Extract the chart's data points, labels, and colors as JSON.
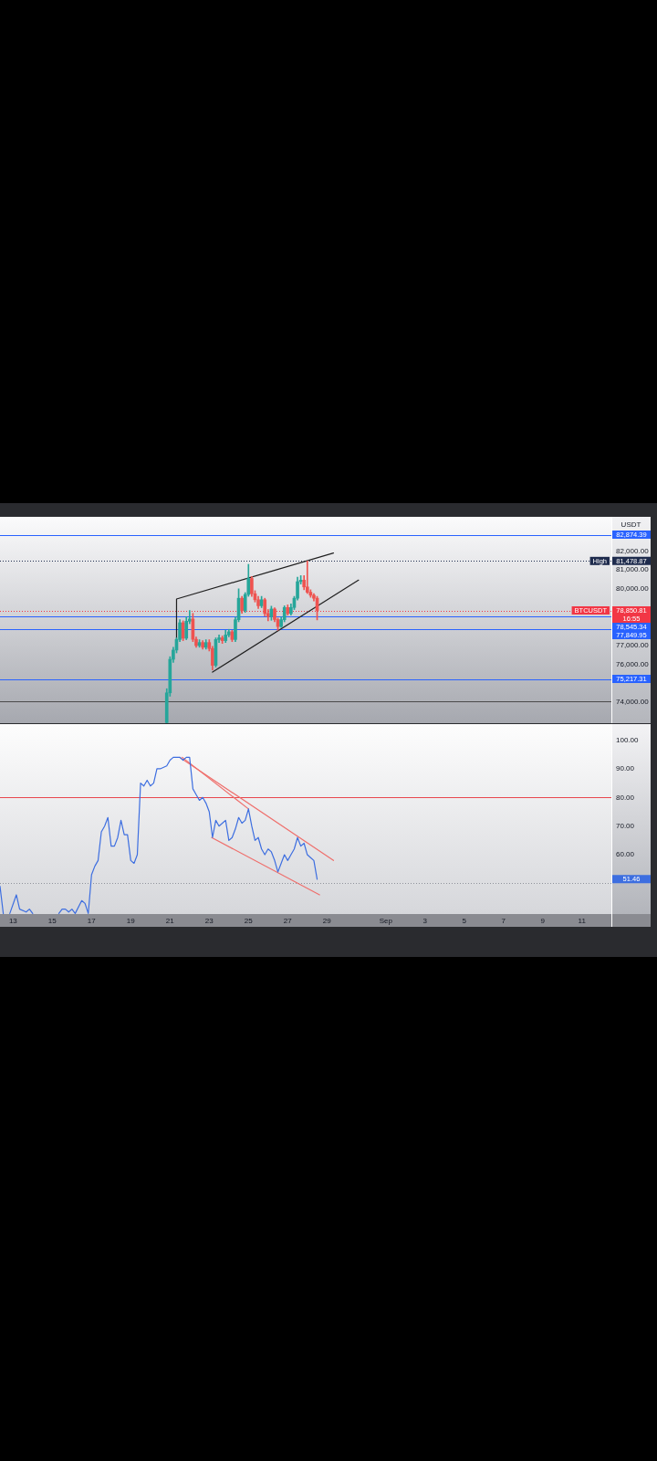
{
  "chart_data": [
    {
      "type": "candlestick",
      "ylabel": "USDT",
      "x": [
        "--08-20T20:00",
        "--08-21T00:00",
        "--08-21T04:00",
        "--08-21T08:00",
        "--08-21T12:00",
        "--08-21T16:00",
        "--08-21T20:00",
        "--08-22T00:00",
        "--08-22T04:00",
        "--08-22T08:00",
        "--08-22T12:00",
        "--08-22T16:00",
        "--08-22T20:00",
        "--08-23T00:00",
        "--08-23T04:00",
        "--08-23T08:00",
        "--08-23T12:00",
        "--08-23T16:00",
        "--08-23T20:00",
        "--08-24T00:00",
        "--08-24T04:00",
        "--08-24T08:00",
        "--08-24T12:00",
        "--08-24T16:00",
        "--08-24T20:00",
        "--08-25T00:00",
        "--08-25T04:00",
        "--08-25T08:00",
        "--08-25T12:00",
        "--08-25T16:00",
        "--08-25T20:00",
        "--08-26T00:00",
        "--08-26T04:00",
        "--08-26T08:00",
        "--08-26T12:00",
        "--08-26T16:00",
        "--08-26T20:00",
        "--08-27T00:00",
        "--08-27T04:00",
        "--08-27T08:00",
        "--08-27T12:00",
        "--08-27T16:00",
        "--08-27T20:00",
        "--08-28T00:00",
        "--08-28T04:00",
        "--08-28T08:00",
        "--08-28T12:00"
      ],
      "ohlc": [
        [
          72900,
          74700,
          72880,
          74480
        ],
        [
          74480,
          76400,
          74300,
          76260
        ],
        [
          76260,
          76900,
          76100,
          76750
        ],
        [
          76750,
          77400,
          76600,
          77310
        ],
        [
          77310,
          78360,
          77200,
          78200
        ],
        [
          78200,
          78300,
          77250,
          77380
        ],
        [
          77380,
          78520,
          77300,
          78280
        ],
        [
          78280,
          78850,
          78150,
          78400
        ],
        [
          78400,
          78700,
          77200,
          77320
        ],
        [
          77320,
          77450,
          76900,
          76990
        ],
        [
          76990,
          77300,
          76900,
          77150
        ],
        [
          77150,
          77250,
          76800,
          76900
        ],
        [
          76900,
          77300,
          76800,
          77150
        ],
        [
          77150,
          77300,
          76700,
          76830
        ],
        [
          76830,
          76950,
          75700,
          75940
        ],
        [
          75940,
          77400,
          75850,
          77310
        ],
        [
          77310,
          77550,
          77150,
          77400
        ],
        [
          77400,
          77500,
          77100,
          77250
        ],
        [
          77250,
          77800,
          77150,
          77550
        ],
        [
          77550,
          77850,
          77450,
          77720
        ],
        [
          77720,
          77800,
          77200,
          77310
        ],
        [
          77310,
          78500,
          77200,
          78360
        ],
        [
          78360,
          80000,
          78250,
          79500
        ],
        [
          79500,
          79600,
          78700,
          78850
        ],
        [
          78850,
          79800,
          78750,
          79700
        ],
        [
          79700,
          81300,
          79600,
          80550
        ],
        [
          80550,
          80650,
          79600,
          79740
        ],
        [
          79740,
          79900,
          79300,
          79420
        ],
        [
          79420,
          79600,
          78950,
          79100
        ],
        [
          79100,
          79600,
          79000,
          79420
        ],
        [
          79420,
          79500,
          78550,
          78690
        ],
        [
          78690,
          78900,
          78300,
          78530
        ],
        [
          78530,
          79080,
          78330,
          78930
        ],
        [
          78930,
          79000,
          78250,
          78370
        ],
        [
          78370,
          78450,
          77800,
          78000
        ],
        [
          78000,
          78500,
          77950,
          78360
        ],
        [
          78360,
          79100,
          78250,
          79010
        ],
        [
          79010,
          79150,
          78600,
          78690
        ],
        [
          78690,
          79200,
          78600,
          79010
        ],
        [
          79010,
          79600,
          78900,
          79500
        ],
        [
          79500,
          80620,
          79400,
          80380
        ],
        [
          80380,
          80700,
          80250,
          80460
        ],
        [
          80460,
          80700,
          79950,
          80100
        ],
        [
          80100,
          81478.87,
          79750,
          79820
        ],
        [
          79820,
          79950,
          79550,
          79660
        ],
        [
          79660,
          79750,
          79350,
          79500
        ],
        [
          79500,
          79600,
          78350,
          78850.81
        ]
      ],
      "colors": [
        "#26a69a",
        "#26a69a",
        "#26a69a",
        "#26a69a",
        "#26a69a",
        "#ef5350",
        "#26a69a",
        "#26a69a",
        "#ef5350",
        "#ef5350",
        "#26a69a",
        "#ef5350",
        "#26a69a",
        "#ef5350",
        "#ef5350",
        "#26a69a",
        "#26a69a",
        "#ef5350",
        "#26a69a",
        "#26a69a",
        "#ef5350",
        "#26a69a",
        "#26a69a",
        "#ef5350",
        "#26a69a",
        "#26a69a",
        "#ef5350",
        "#ef5350",
        "#ef5350",
        "#26a69a",
        "#ef5350",
        "#ef5350",
        "#26a69a",
        "#ef5350",
        "#ef5350",
        "#26a69a",
        "#26a69a",
        "#ef5350",
        "#26a69a",
        "#26a69a",
        "#26a69a",
        "#26a69a",
        "#ef5350",
        "#ef5350",
        "#ef5350",
        "#ef5350",
        "#ef5350"
      ],
      "series": [
        {
          "type": "line",
          "color": "#1f1f1f",
          "x": [
            "--08-21T08:00",
            "--08-21T08:00",
            "--08-29T08:00"
          ],
          "values": [
            77000,
            79460,
            81900
          ]
        },
        {
          "type": "line",
          "color": "#1f1f1f",
          "x": [
            "--08-23T04:00",
            "--08-30T14:40"
          ],
          "values": [
            75580,
            80460
          ]
        }
      ],
      "xlim": [
        "--08-12T08:00",
        "--09-12T12:00"
      ],
      "ylim": [
        72870,
        83820
      ],
      "yticks": [
        {
          "value": 74000,
          "label": "74,000.00"
        },
        {
          "value": 76000,
          "label": "76,000.00"
        },
        {
          "value": 77000,
          "label": "77,000.00"
        },
        {
          "value": 80000,
          "label": "80,000.00"
        },
        {
          "value": 81000,
          "label": "81,000.00"
        },
        {
          "value": 82000,
          "label": "82,000.00"
        }
      ],
      "tick_labels": "y",
      "ref_lines": [
        {
          "axis": "y",
          "value": 82874.39,
          "label": "82,874.39",
          "color": "#2962ff"
        },
        {
          "axis": "y",
          "value": 81478.87,
          "label": "81,478.87",
          "color": "#1e2b4d",
          "line_style": "dotted"
        },
        {
          "axis": "y",
          "value": 78850.81,
          "label": "78,850.81",
          "color": "#f23645",
          "line_style": "dotted"
        },
        {
          "axis": "y",
          "value": 78545.34,
          "label": "78,545.34",
          "color": "#2962ff"
        },
        {
          "axis": "y",
          "value": 77849.95,
          "label": "77,849.95",
          "color": "#2962ff"
        },
        {
          "axis": "y",
          "value": 75217.31,
          "label": "75,217.31",
          "color": "#2962ff"
        },
        {
          "axis": "y",
          "value": 74050,
          "color": "#4a4a4a"
        }
      ],
      "annotations": [
        {
          "text": "High",
          "x": "--09-12T12:00",
          "y": 81478.87
        },
        {
          "text": "BTCUSDT",
          "x": "--09-12T12:00",
          "y": 78850.81
        },
        "16:55"
      ]
    },
    {
      "type": "line",
      "series": [
        {
          "color": "#3d6ee0",
          "x": [
            "--08-12T08:00",
            "--08-12T12:00",
            "--08-12T16:00",
            "--08-12T20:00",
            "--08-13T04:00",
            "--08-13T08:00",
            "--08-13T16:00",
            "--08-13T20:00",
            "--08-14T00:00",
            "--08-14T04:00",
            "--08-15T08:00",
            "--08-15T12:00",
            "--08-15T16:00",
            "--08-15T20:00",
            "--08-16T00:00",
            "--08-16T04:00",
            "--08-16T12:00",
            "--08-16T16:00",
            "--08-16T20:00",
            "--08-17T00:00",
            "--08-17T04:00",
            "--08-17T08:00",
            "--08-17T12:00",
            "--08-17T16:00",
            "--08-17T20:00",
            "--08-18T00:00",
            "--08-18T04:00",
            "--08-18T08:00",
            "--08-18T12:00",
            "--08-18T16:00",
            "--08-18T20:00",
            "--08-19T00:00",
            "--08-19T04:00",
            "--08-19T08:00",
            "--08-19T12:00",
            "--08-19T16:00",
            "--08-19T20:00",
            "--08-20T00:00",
            "--08-20T04:00",
            "--08-20T08:00",
            "--08-20T12:00",
            "--08-20T20:00",
            "--08-21T00:00",
            "--08-21T04:00",
            "--08-21T12:00",
            "--08-21T16:00",
            "--08-21T20:00",
            "--08-22T00:00",
            "--08-22T04:00",
            "--08-22T08:00",
            "--08-22T12:00",
            "--08-22T16:00",
            "--08-22T20:00",
            "--08-23T00:00",
            "--08-23T04:00",
            "--08-23T08:00",
            "--08-23T12:00",
            "--08-23T16:00",
            "--08-23T20:00",
            "--08-24T00:00",
            "--08-24T04:00",
            "--08-24T08:00",
            "--08-24T12:00",
            "--08-24T16:00",
            "--08-24T20:00",
            "--08-25T00:00",
            "--08-25T04:00",
            "--08-25T08:00",
            "--08-25T12:00",
            "--08-25T16:00",
            "--08-25T20:00",
            "--08-26T00:00",
            "--08-26T04:00",
            "--08-26T08:00",
            "--08-26T12:00",
            "--08-26T16:00",
            "--08-26T20:00",
            "--08-27T00:00",
            "--08-27T04:00",
            "--08-27T08:00",
            "--08-27T12:00",
            "--08-27T16:00",
            "--08-27T20:00",
            "--08-28T00:00",
            "--08-28T04:00",
            "--08-28T08:00",
            "--08-28T12:00"
          ],
          "values": [
            49,
            39.5,
            null,
            39.5,
            46,
            41,
            40,
            41,
            39.5,
            null,
            39.5,
            41,
            41,
            40,
            41,
            39.5,
            44,
            43,
            39.5,
            53,
            56,
            58,
            68,
            70,
            73,
            63,
            63,
            66,
            72,
            67,
            67,
            58,
            57,
            60,
            85,
            84,
            86,
            84,
            85,
            90,
            90,
            91,
            93,
            94,
            94,
            93,
            94,
            94,
            83,
            81,
            79,
            80,
            78,
            75,
            66,
            72,
            70,
            71,
            72,
            65,
            66,
            69,
            73,
            71,
            72,
            76,
            70,
            65,
            66,
            62,
            60,
            62,
            61,
            58,
            54,
            57,
            60,
            58,
            60,
            62,
            66,
            63,
            64,
            60,
            59,
            58,
            51.46
          ]
        },
        {
          "color": "#ef6f6c",
          "x": [
            "--08-21T12:00",
            "--08-29T08:00"
          ],
          "values": [
            94,
            58
          ]
        },
        {
          "color": "#ef6f6c",
          "x": [
            "--08-21T15:00",
            "--08-25T00:00"
          ],
          "values": [
            94,
            76
          ]
        },
        {
          "color": "#ef6f6c",
          "x": [
            "--08-23T03:00",
            "--08-28T15:00"
          ],
          "values": [
            66,
            46
          ]
        }
      ],
      "xlim": [
        "--08-12T08:00",
        "--09-12T12:00"
      ],
      "xticks": [
        {
          "value": "--08-13",
          "label": "13"
        },
        {
          "value": "--08-15",
          "label": "15"
        },
        {
          "value": "--08-17",
          "label": "17"
        },
        {
          "value": "--08-19",
          "label": "19"
        },
        {
          "value": "--08-21",
          "label": "21"
        },
        {
          "value": "--08-23",
          "label": "23"
        },
        {
          "value": "--08-25",
          "label": "25"
        },
        {
          "value": "--08-27",
          "label": "27"
        },
        {
          "value": "--08-29",
          "label": "29"
        },
        {
          "value": "--09-01",
          "label": "Sep"
        },
        {
          "value": "--09-03",
          "label": "3"
        },
        {
          "value": "--09-05",
          "label": "5"
        },
        {
          "value": "--09-07",
          "label": "7"
        },
        {
          "value": "--09-09",
          "label": "9"
        },
        {
          "value": "--09-11",
          "label": "11"
        }
      ],
      "ylim": [
        39.3,
        105.6
      ],
      "yticks": [
        {
          "value": 60,
          "label": "60.00"
        },
        {
          "value": 70,
          "label": "70.00"
        },
        {
          "value": 80,
          "label": "80.00"
        },
        {
          "value": 90,
          "label": "90.00"
        },
        {
          "value": 100,
          "label": "100.00"
        }
      ],
      "ref_lines": [
        {
          "axis": "y",
          "value": 80,
          "color": "#e8474d"
        },
        {
          "axis": "y",
          "value": 50,
          "color": "#8f929b",
          "line_style": "dotted"
        }
      ],
      "annotations": [
        "51.46"
      ]
    }
  ]
}
